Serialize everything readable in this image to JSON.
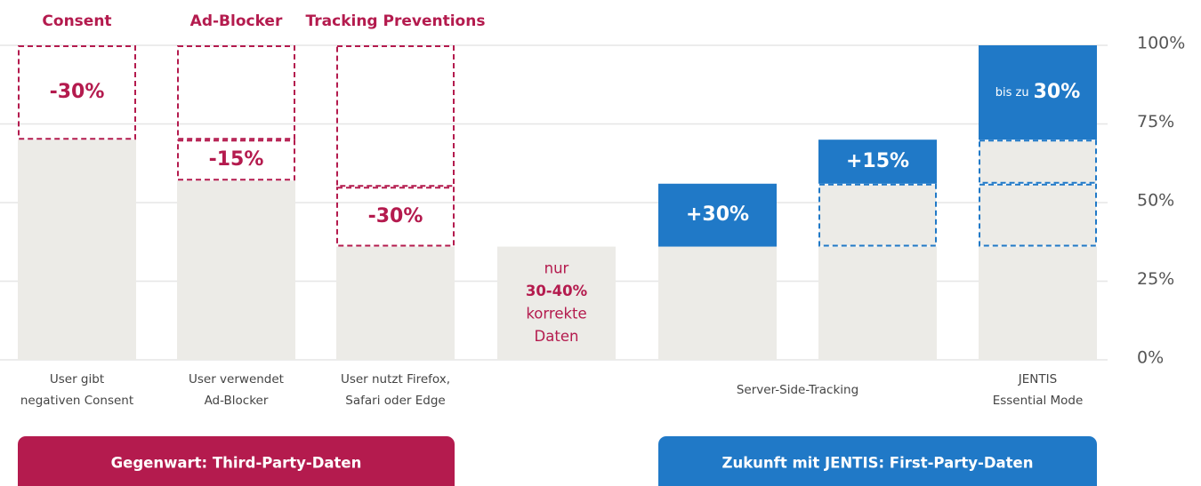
{
  "chart_data": {
    "type": "stacked-infographic",
    "ylim": [
      0,
      100
    ],
    "yticks": [
      {
        "value": 0,
        "label": "0%"
      },
      {
        "value": 25,
        "label": "25%"
      },
      {
        "value": 50,
        "label": "50%"
      },
      {
        "value": 75,
        "label": "75%"
      },
      {
        "value": 100,
        "label": "100%"
      }
    ],
    "grid": true,
    "colors": {
      "grey": "#ecebe7",
      "red": "#b41b4e",
      "blue": "#2079c7",
      "grid": "#e6e6e6"
    },
    "bars": [
      {
        "header": "Consent",
        "label": [
          "User gibt",
          "negativen Consent"
        ],
        "segments": [
          {
            "value": 70,
            "style": "grey"
          },
          {
            "value": 30,
            "style": "dashed-red",
            "text": [
              "-30%"
            ]
          }
        ]
      },
      {
        "header": "Ad-Blocker",
        "label": [
          "User verwendet",
          "Ad-Blocker"
        ],
        "segments": [
          {
            "value": 57,
            "style": "grey"
          },
          {
            "value": 13,
            "style": "dashed-red",
            "text": [
              "-15%"
            ]
          },
          {
            "value": 30,
            "style": "dashed-red"
          }
        ]
      },
      {
        "header": "Tracking Preventions",
        "label": [
          "User nutzt Firefox,",
          "Safari oder Edge"
        ],
        "segments": [
          {
            "value": 36,
            "style": "grey"
          },
          {
            "value": 19,
            "style": "dashed-red",
            "text": [
              "-30%"
            ]
          },
          {
            "value": 45,
            "style": "dashed-red"
          }
        ]
      },
      {
        "segments": [
          {
            "value": 36,
            "style": "grey"
          }
        ],
        "inner_text": [
          "nur",
          "30-40%",
          "korrekte",
          "Daten"
        ]
      },
      {
        "segments": [
          {
            "value": 36,
            "style": "grey"
          },
          {
            "value": 20,
            "style": "blue",
            "text": [
              "+30%"
            ]
          }
        ]
      },
      {
        "segments": [
          {
            "value": 36,
            "style": "grey"
          },
          {
            "value": 20,
            "style": "grey-dashed-blue"
          },
          {
            "value": 14,
            "style": "blue",
            "text": [
              "+15%"
            ]
          }
        ]
      },
      {
        "label": [
          "JENTIS",
          "Essential Mode"
        ],
        "segments": [
          {
            "value": 36,
            "style": "grey"
          },
          {
            "value": 20,
            "style": "grey-dashed-blue"
          },
          {
            "value": 14,
            "style": "grey-dashed-blue"
          },
          {
            "value": 30,
            "style": "blue",
            "text": [
              "bis zu",
              "30%"
            ]
          }
        ]
      }
    ],
    "shared_label": "Server-Side-Tracking",
    "banners": [
      "Gegenwart: Third-Party-Daten",
      "Zukunft mit JENTIS: First-Party-Daten"
    ]
  }
}
